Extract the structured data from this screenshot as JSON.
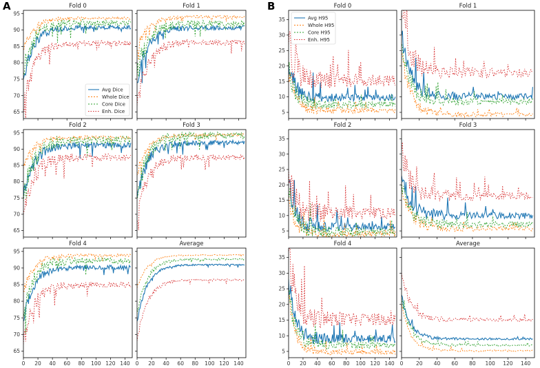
{
  "panel_letters": [
    "A",
    "B"
  ],
  "colors": {
    "avg": "#1f77b4",
    "whole": "#ff7f0e",
    "core": "#2ca02c",
    "enh": "#d62728"
  },
  "chart_data": [
    {
      "type": "line",
      "panel": "A",
      "metric": "Dice",
      "xlim": [
        0,
        150
      ],
      "xticks": [
        0,
        20,
        40,
        60,
        80,
        100,
        120,
        140
      ],
      "ylim": [
        63,
        96
      ],
      "yticks": [
        65,
        70,
        75,
        80,
        85,
        90,
        95
      ],
      "legend": {
        "location": "lower-right",
        "entries": [
          "Avg Dice",
          "Whole Dice",
          "Core Dice",
          "Enh. Dice"
        ]
      },
      "subplots": [
        {
          "title": "Fold 0",
          "series": [
            {
              "name": "Avg Dice",
              "start": 75,
              "end": 90.8,
              "noise": 0.6
            },
            {
              "name": "Whole Dice",
              "start": 84,
              "end": 93.6,
              "noise": 0.4
            },
            {
              "name": "Core Dice",
              "start": 77,
              "end": 92.2,
              "noise": 0.9
            },
            {
              "name": "Enh. Dice",
              "start": 66,
              "end": 86.0,
              "noise": 0.8
            }
          ]
        },
        {
          "title": "Fold 1",
          "series": [
            {
              "name": "Avg Dice",
              "start": 74,
              "end": 90.7,
              "noise": 0.6
            },
            {
              "name": "Whole Dice",
              "start": 84,
              "end": 94.0,
              "noise": 0.4
            },
            {
              "name": "Core Dice",
              "start": 76,
              "end": 92.0,
              "noise": 1.0
            },
            {
              "name": "Enh. Dice",
              "start": 67,
              "end": 86.2,
              "noise": 0.8
            }
          ]
        },
        {
          "title": "Fold 2",
          "series": [
            {
              "name": "Avg Dice",
              "start": 75,
              "end": 91.2,
              "noise": 0.8
            },
            {
              "name": "Whole Dice",
              "start": 84,
              "end": 93.6,
              "noise": 0.5
            },
            {
              "name": "Core Dice",
              "start": 74,
              "end": 92.8,
              "noise": 1.2
            },
            {
              "name": "Enh. Dice",
              "start": 70,
              "end": 87.5,
              "noise": 1.0
            }
          ]
        },
        {
          "title": "Fold 3",
          "series": [
            {
              "name": "Avg Dice",
              "start": 75,
              "end": 92.0,
              "noise": 0.7
            },
            {
              "name": "Whole Dice",
              "start": 82,
              "end": 94.4,
              "noise": 0.4
            },
            {
              "name": "Core Dice",
              "start": 75,
              "end": 94.2,
              "noise": 1.0
            },
            {
              "name": "Enh. Dice",
              "start": 68,
              "end": 87.5,
              "noise": 0.8
            }
          ]
        },
        {
          "title": "Fold 4",
          "series": [
            {
              "name": "Avg Dice",
              "start": 74,
              "end": 90.2,
              "noise": 0.6
            },
            {
              "name": "Whole Dice",
              "start": 83,
              "end": 93.8,
              "noise": 0.4
            },
            {
              "name": "Core Dice",
              "start": 77,
              "end": 92.2,
              "noise": 0.9
            },
            {
              "name": "Enh. Dice",
              "start": 67,
              "end": 85.0,
              "noise": 0.8
            }
          ]
        },
        {
          "title": "Average",
          "series": [
            {
              "name": "Avg Dice",
              "start": 74,
              "end": 91.0,
              "noise": 0.2
            },
            {
              "name": "Whole Dice",
              "start": 84,
              "end": 93.9,
              "noise": 0.15
            },
            {
              "name": "Core Dice",
              "start": 76,
              "end": 92.7,
              "noise": 0.3
            },
            {
              "name": "Enh. Dice",
              "start": 68,
              "end": 86.4,
              "noise": 0.3
            }
          ]
        }
      ]
    },
    {
      "type": "line",
      "panel": "B",
      "metric": "H95",
      "xlim": [
        0,
        150
      ],
      "xticks": [
        0,
        20,
        40,
        60,
        80,
        100,
        120,
        140
      ],
      "ylim": [
        3,
        38
      ],
      "yticks": [
        5,
        10,
        15,
        20,
        25,
        30,
        35
      ],
      "legend": {
        "location": "top-left",
        "entries": [
          "Avg H95",
          "Whole H95",
          "Core H95",
          "Enh. H95"
        ]
      },
      "subplots": [
        {
          "title": "Fold 0",
          "series": [
            {
              "name": "Avg H95",
              "start": 20,
              "end": 9.8,
              "noise": 1.0
            },
            {
              "name": "Whole H95",
              "start": 18,
              "end": 5.6,
              "noise": 0.8
            },
            {
              "name": "Core H95",
              "start": 19,
              "end": 7.5,
              "noise": 1.0
            },
            {
              "name": "Enh. H95",
              "start": 27,
              "end": 15.4,
              "noise": 2.0
            }
          ]
        },
        {
          "title": "Fold 1",
          "series": [
            {
              "name": "Avg H95",
              "start": 30,
              "end": 10.2,
              "noise": 1.0
            },
            {
              "name": "Whole H95",
              "start": 24,
              "end": 4.3,
              "noise": 0.7
            },
            {
              "name": "Core H95",
              "start": 27,
              "end": 8.5,
              "noise": 1.0
            },
            {
              "name": "Enh. H95",
              "start": 37,
              "end": 17.8,
              "noise": 1.4
            }
          ]
        },
        {
          "title": "Fold 2",
          "series": [
            {
              "name": "Avg H95",
              "start": 21,
              "end": 6.3,
              "noise": 1.2
            },
            {
              "name": "Whole H95",
              "start": 16,
              "end": 4.0,
              "noise": 1.0
            },
            {
              "name": "Core H95",
              "start": 18,
              "end": 4.6,
              "noise": 1.2
            },
            {
              "name": "Enh. H95",
              "start": 25,
              "end": 10.8,
              "noise": 2.0
            }
          ]
        },
        {
          "title": "Fold 3",
          "series": [
            {
              "name": "Avg H95",
              "start": 23,
              "end": 10.0,
              "noise": 1.0
            },
            {
              "name": "Whole H95",
              "start": 20,
              "end": 5.8,
              "noise": 0.8
            },
            {
              "name": "Core H95",
              "start": 21,
              "end": 7.0,
              "noise": 1.0
            },
            {
              "name": "Enh. H95",
              "start": 31,
              "end": 16.4,
              "noise": 1.3
            }
          ]
        },
        {
          "title": "Fold 4",
          "series": [
            {
              "name": "Avg H95",
              "start": 28,
              "end": 9.0,
              "noise": 1.2
            },
            {
              "name": "Whole H95",
              "start": 22,
              "end": 4.8,
              "noise": 0.8
            },
            {
              "name": "Core H95",
              "start": 24,
              "end": 7.0,
              "noise": 1.0
            },
            {
              "name": "Enh. H95",
              "start": 37,
              "end": 15.2,
              "noise": 2.0
            }
          ]
        },
        {
          "title": "Average",
          "series": [
            {
              "name": "Avg H95",
              "start": 23,
              "end": 9.0,
              "noise": 0.3
            },
            {
              "name": "Whole H95",
              "start": 20,
              "end": 5.2,
              "noise": 0.25
            },
            {
              "name": "Core H95",
              "start": 22,
              "end": 7.0,
              "noise": 0.3
            },
            {
              "name": "Enh. H95",
              "start": 30,
              "end": 15.1,
              "noise": 0.5
            }
          ]
        }
      ]
    }
  ]
}
